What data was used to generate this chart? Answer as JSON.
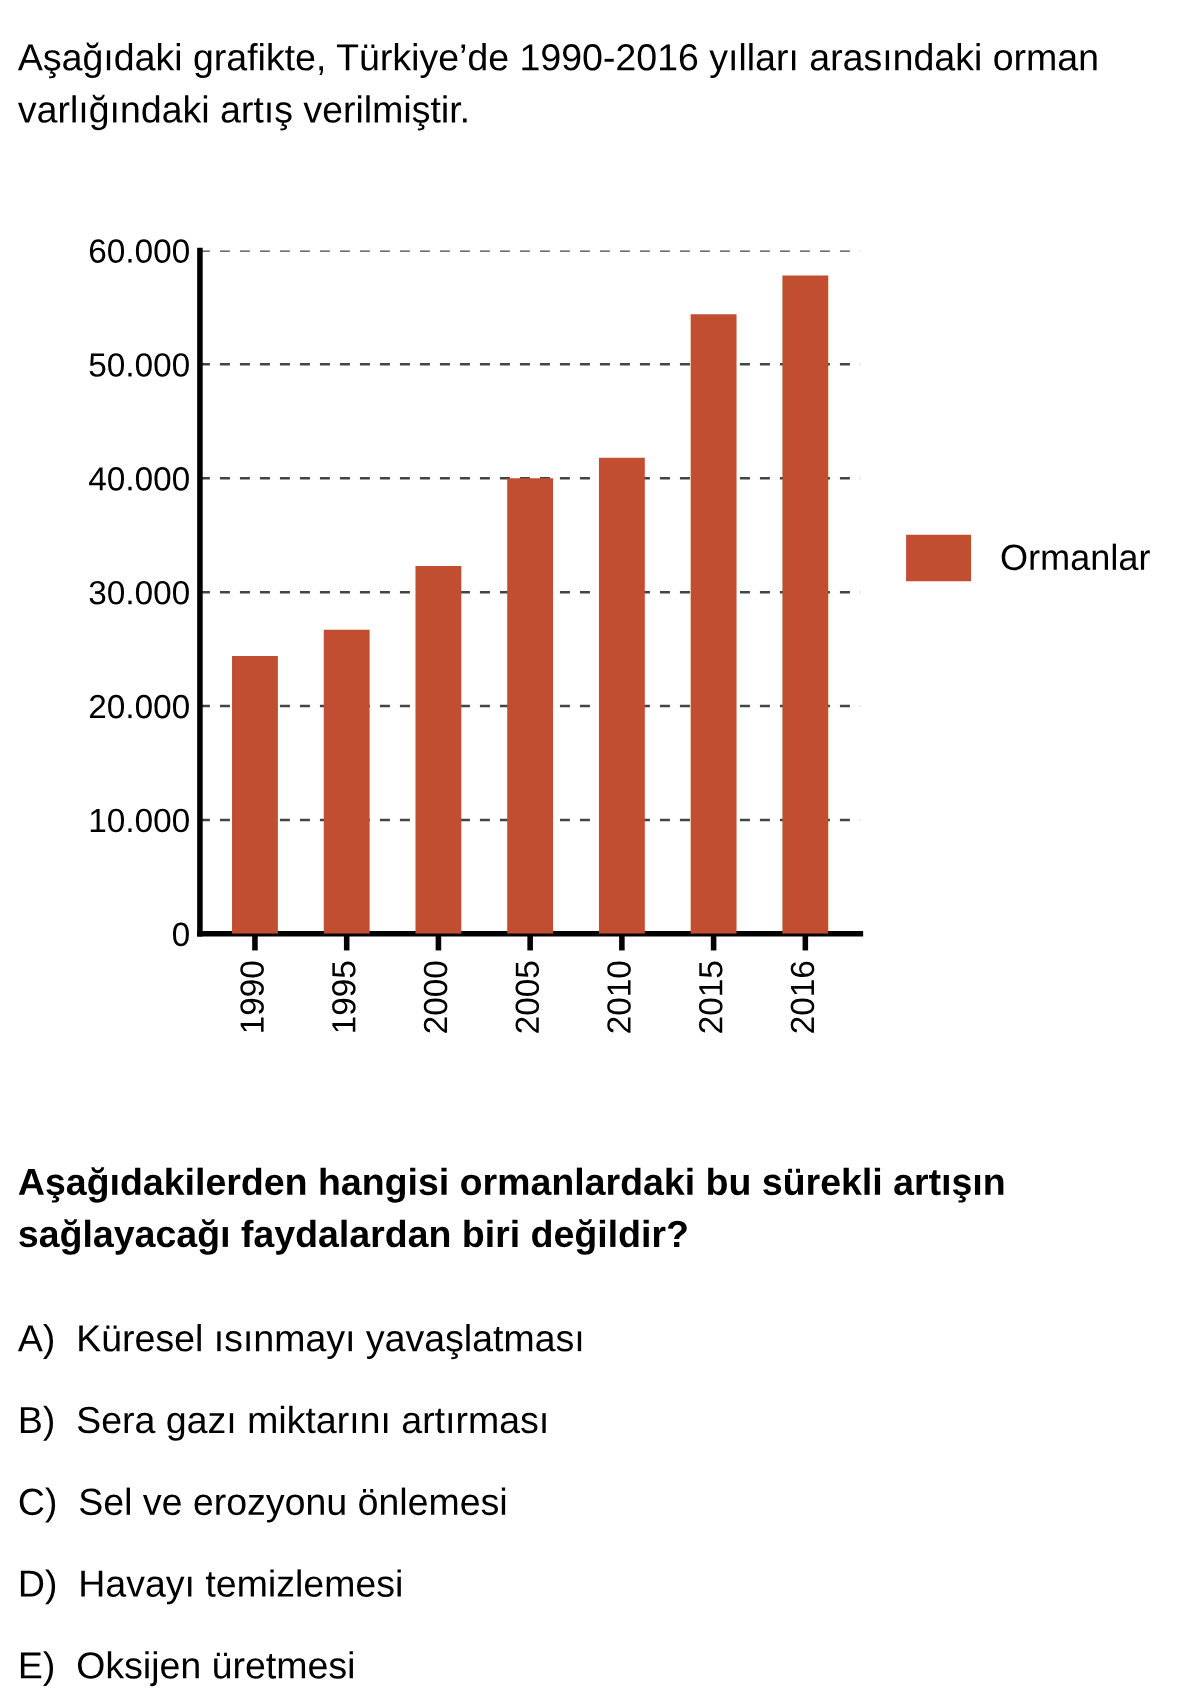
{
  "chart_data": {
    "type": "bar",
    "title": "Aşağıdaki grafikte, Türkiye’de 1990-2016 yılları arasındaki orman varlığındaki artış verilmiştir.",
    "categories": [
      "1990",
      "1995",
      "2000",
      "2005",
      "2010",
      "2015",
      "2016"
    ],
    "series": [
      {
        "name": "Ormanlar",
        "color": "#c24e32",
        "values": [
          24400,
          26700,
          32300,
          40000,
          41800,
          54400,
          57800
        ]
      }
    ],
    "ylim": [
      0,
      60000
    ],
    "yticks": [
      {
        "value": 0,
        "label": "0"
      },
      {
        "value": 10000,
        "label": "10.000"
      },
      {
        "value": 20000,
        "label": "20.000"
      },
      {
        "value": 30000,
        "label": "30.000"
      },
      {
        "value": 40000,
        "label": "40.000"
      },
      {
        "value": 50000,
        "label": "50.000"
      },
      {
        "value": 60000,
        "label": "60.000"
      }
    ],
    "grid": "y",
    "legend": "right",
    "annotations": [
      "Aşağıdakilerden hangisi ormanlardaki bu sürekli artışın sağlayacağı faydalardan biri değildir?",
      "A)  Küresel ısınmayı yavaşlatması",
      "B)  Sera gazı miktarını artırması",
      "C)  Sel ve erozyonu önlemesi",
      "D)  Havayı temizlemesi",
      "E)  Oksijen üretmesi"
    ]
  }
}
